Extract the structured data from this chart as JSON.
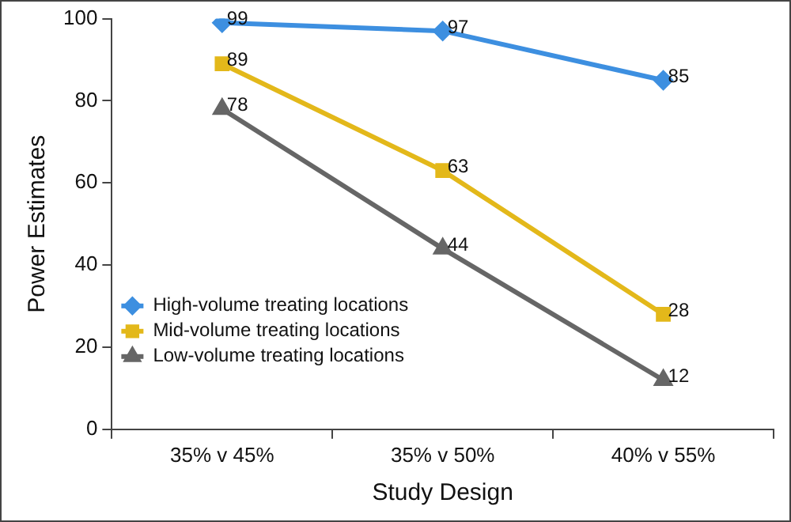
{
  "chart_data": {
    "type": "line",
    "xlabel": "Study Design",
    "ylabel": "Power Estimates",
    "categories": [
      "35% v 45%",
      "35% v 50%",
      "40% v 55%"
    ],
    "series": [
      {
        "name": "High-volume treating locations",
        "color": "#3d8fe0",
        "values": [
          99,
          97,
          85
        ],
        "marker": "diamond"
      },
      {
        "name": "Mid-volume treating locations",
        "color": "#e3b81a",
        "values": [
          89,
          63,
          28
        ],
        "marker": "square"
      },
      {
        "name": "Low-volume treating locations",
        "color": "#666666",
        "values": [
          78,
          44,
          12
        ],
        "marker": "triangle"
      }
    ],
    "ylim": [
      0,
      100
    ],
    "yticks": [
      0,
      20,
      40,
      60,
      80,
      100
    ],
    "grid": false,
    "legend": "bottom left",
    "data_labels": true
  }
}
